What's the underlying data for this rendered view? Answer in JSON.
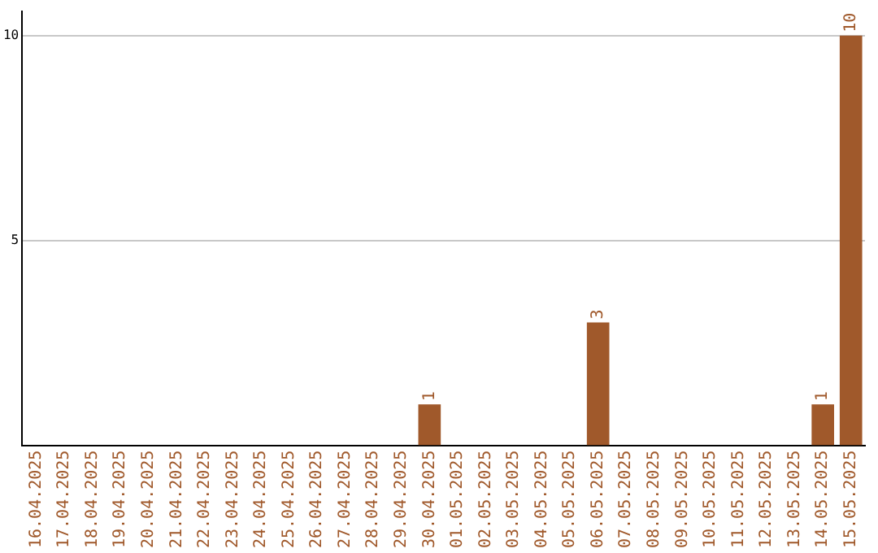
{
  "chart_data": {
    "type": "bar",
    "categories": [
      "16.04.2025",
      "17.04.2025",
      "18.04.2025",
      "19.04.2025",
      "20.04.2025",
      "21.04.2025",
      "22.04.2025",
      "23.04.2025",
      "24.04.2025",
      "25.04.2025",
      "26.04.2025",
      "27.04.2025",
      "28.04.2025",
      "29.04.2025",
      "30.04.2025",
      "01.05.2025",
      "02.05.2025",
      "03.05.2025",
      "04.05.2025",
      "05.05.2025",
      "06.05.2025",
      "07.05.2025",
      "08.05.2025",
      "09.05.2025",
      "10.05.2025",
      "11.05.2025",
      "12.05.2025",
      "13.05.2025",
      "14.05.2025",
      "15.05.2025"
    ],
    "values": [
      0,
      0,
      0,
      0,
      0,
      0,
      0,
      0,
      0,
      0,
      0,
      0,
      0,
      0,
      1,
      0,
      0,
      0,
      0,
      0,
      3,
      0,
      0,
      0,
      0,
      0,
      0,
      0,
      1,
      10
    ],
    "value_labels": [
      null,
      null,
      null,
      null,
      null,
      null,
      null,
      null,
      null,
      null,
      null,
      null,
      null,
      null,
      "1",
      null,
      null,
      null,
      null,
      null,
      "3",
      null,
      null,
      null,
      null,
      null,
      null,
      null,
      "1",
      "10"
    ],
    "color": "#a0592b",
    "ylim": [
      0,
      10.6
    ],
    "yticks": [
      5,
      10
    ],
    "grid": "y",
    "legend": false
  }
}
